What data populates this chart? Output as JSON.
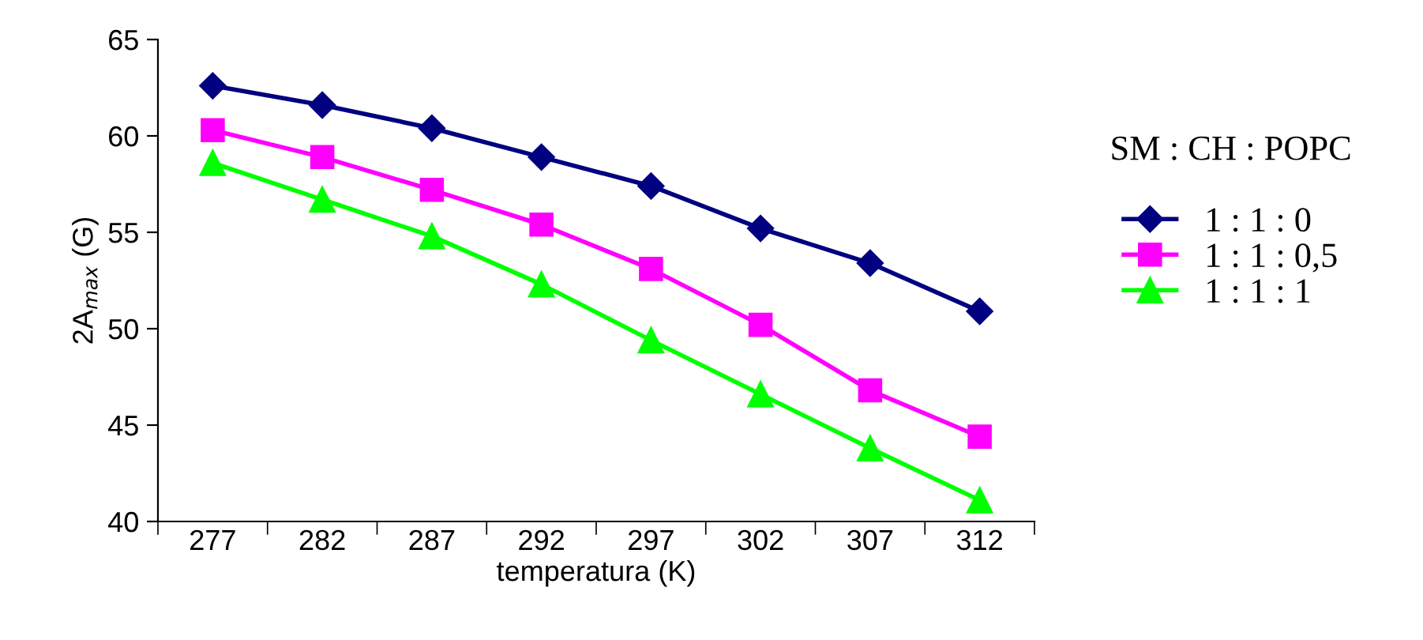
{
  "chart_data": {
    "type": "line",
    "xlabel": "temperatura (K)",
    "ylabel": "2A$_{max}$ (G)",
    "legend_title": "SM : CH : POPC",
    "categories": [
      "277",
      "282",
      "287",
      "292",
      "297",
      "302",
      "307",
      "312"
    ],
    "series": [
      {
        "name": "1 : 1 : 0",
        "color": "#000080",
        "marker": "diamond",
        "values": [
          62.6,
          61.6,
          60.4,
          58.9,
          57.4,
          55.2,
          53.4,
          50.9
        ]
      },
      {
        "name": "1 : 1 : 0,5",
        "color": "#ff00ff",
        "marker": "square",
        "values": [
          60.3,
          58.9,
          57.2,
          55.4,
          53.1,
          50.2,
          46.8,
          44.4
        ]
      },
      {
        "name": "1 : 1 : 1",
        "color": "#00ff00",
        "marker": "triangle",
        "values": [
          58.6,
          56.7,
          54.8,
          52.3,
          49.4,
          46.6,
          43.8,
          41.1
        ]
      }
    ],
    "ylim": [
      40,
      65
    ],
    "yticks": [
      40,
      45,
      50,
      55,
      60,
      65
    ],
    "grid": false,
    "legend": "right",
    "line_style": "solid"
  }
}
